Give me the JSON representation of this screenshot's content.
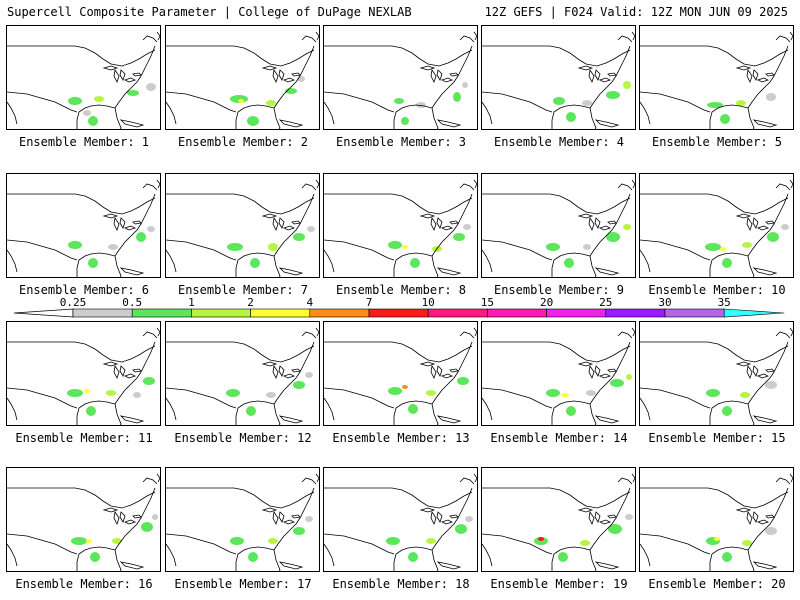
{
  "header": {
    "left": "Supercell Composite Parameter | College of DuPage NEXLAB",
    "right": "12Z GEFS | F024 Valid: 12Z MON JUN 09 2025"
  },
  "member_prefix": "Ensemble Member: ",
  "members": [
    {
      "n": "1",
      "blobs": [
        [
          74,
          100,
          14,
          8,
          "#5ce65c"
        ],
        [
          98,
          98,
          10,
          6,
          "#b7f542"
        ],
        [
          86,
          112,
          8,
          6,
          "#cccccc"
        ],
        [
          92,
          120,
          10,
          10,
          "#5ce65c"
        ],
        [
          132,
          92,
          12,
          6,
          "#5ce65c"
        ],
        [
          150,
          86,
          10,
          8,
          "#cccccc"
        ]
      ]
    },
    {
      "n": "2",
      "blobs": [
        [
          238,
          98,
          18,
          8,
          "#5ce65c"
        ],
        [
          240,
          100,
          6,
          4,
          "#ffff33"
        ],
        [
          252,
          120,
          12,
          10,
          "#5ce65c"
        ],
        [
          270,
          102,
          10,
          6,
          "#b7f542"
        ],
        [
          290,
          90,
          12,
          6,
          "#5ce65c"
        ],
        [
          300,
          78,
          8,
          6,
          "#cccccc"
        ]
      ]
    },
    {
      "n": "3",
      "blobs": [
        [
          398,
          100,
          10,
          6,
          "#5ce65c"
        ],
        [
          404,
          120,
          8,
          8,
          "#5ce65c"
        ],
        [
          420,
          104,
          10,
          6,
          "#cccccc"
        ],
        [
          456,
          96,
          8,
          10,
          "#5ce65c"
        ],
        [
          464,
          84,
          6,
          6,
          "#cccccc"
        ]
      ]
    },
    {
      "n": "4",
      "blobs": [
        [
          558,
          100,
          12,
          8,
          "#5ce65c"
        ],
        [
          570,
          116,
          10,
          10,
          "#5ce65c"
        ],
        [
          586,
          102,
          10,
          6,
          "#cccccc"
        ],
        [
          612,
          94,
          14,
          8,
          "#5ce65c"
        ],
        [
          626,
          84,
          8,
          8,
          "#b7f542"
        ]
      ]
    },
    {
      "n": "5",
      "blobs": [
        [
          714,
          104,
          16,
          6,
          "#5ce65c"
        ],
        [
          724,
          118,
          10,
          10,
          "#5ce65c"
        ],
        [
          740,
          102,
          10,
          6,
          "#b7f542"
        ],
        [
          770,
          96,
          10,
          8,
          "#cccccc"
        ]
      ]
    },
    {
      "n": "6",
      "blobs": [
        [
          74,
          244,
          14,
          8,
          "#5ce65c"
        ],
        [
          92,
          262,
          10,
          10,
          "#5ce65c"
        ],
        [
          112,
          246,
          10,
          6,
          "#cccccc"
        ],
        [
          140,
          236,
          10,
          10,
          "#5ce65c"
        ],
        [
          150,
          228,
          8,
          6,
          "#cccccc"
        ]
      ]
    },
    {
      "n": "7",
      "blobs": [
        [
          234,
          246,
          16,
          8,
          "#5ce65c"
        ],
        [
          254,
          262,
          10,
          10,
          "#5ce65c"
        ],
        [
          272,
          246,
          10,
          8,
          "#b7f542"
        ],
        [
          298,
          236,
          12,
          8,
          "#5ce65c"
        ],
        [
          310,
          228,
          8,
          6,
          "#cccccc"
        ]
      ]
    },
    {
      "n": "8",
      "blobs": [
        [
          394,
          244,
          14,
          8,
          "#5ce65c"
        ],
        [
          404,
          246,
          6,
          4,
          "#ffff33"
        ],
        [
          414,
          262,
          10,
          10,
          "#5ce65c"
        ],
        [
          436,
          248,
          10,
          6,
          "#b7f542"
        ],
        [
          458,
          236,
          12,
          8,
          "#5ce65c"
        ],
        [
          466,
          226,
          8,
          6,
          "#cccccc"
        ]
      ]
    },
    {
      "n": "9",
      "blobs": [
        [
          552,
          246,
          14,
          8,
          "#5ce65c"
        ],
        [
          568,
          262,
          10,
          10,
          "#5ce65c"
        ],
        [
          586,
          246,
          8,
          6,
          "#cccccc"
        ],
        [
          612,
          236,
          14,
          10,
          "#5ce65c"
        ],
        [
          626,
          226,
          8,
          6,
          "#b7f542"
        ]
      ]
    },
    {
      "n": "10",
      "blobs": [
        [
          712,
          246,
          16,
          8,
          "#5ce65c"
        ],
        [
          722,
          248,
          6,
          4,
          "#ffff33"
        ],
        [
          726,
          262,
          10,
          10,
          "#5ce65c"
        ],
        [
          746,
          244,
          10,
          6,
          "#b7f542"
        ],
        [
          772,
          236,
          12,
          10,
          "#5ce65c"
        ],
        [
          784,
          226,
          8,
          6,
          "#cccccc"
        ]
      ]
    },
    {
      "n": "11",
      "blobs": [
        [
          74,
          392,
          16,
          8,
          "#5ce65c"
        ],
        [
          86,
          390,
          6,
          4,
          "#ffff33"
        ],
        [
          90,
          410,
          10,
          10,
          "#5ce65c"
        ],
        [
          110,
          392,
          10,
          6,
          "#b7f542"
        ],
        [
          148,
          380,
          12,
          8,
          "#5ce65c"
        ],
        [
          136,
          394,
          8,
          6,
          "#cccccc"
        ]
      ]
    },
    {
      "n": "12",
      "blobs": [
        [
          232,
          392,
          14,
          8,
          "#5ce65c"
        ],
        [
          250,
          410,
          10,
          10,
          "#5ce65c"
        ],
        [
          270,
          394,
          10,
          6,
          "#cccccc"
        ],
        [
          298,
          384,
          12,
          8,
          "#5ce65c"
        ],
        [
          308,
          374,
          8,
          6,
          "#cccccc"
        ]
      ]
    },
    {
      "n": "13",
      "blobs": [
        [
          394,
          390,
          14,
          8,
          "#5ce65c"
        ],
        [
          404,
          386,
          6,
          4,
          "#ff8c1a"
        ],
        [
          412,
          408,
          10,
          10,
          "#5ce65c"
        ],
        [
          430,
          392,
          10,
          6,
          "#b7f542"
        ],
        [
          462,
          380,
          12,
          8,
          "#5ce65c"
        ]
      ]
    },
    {
      "n": "14",
      "blobs": [
        [
          552,
          392,
          14,
          8,
          "#5ce65c"
        ],
        [
          564,
          394,
          8,
          4,
          "#ffff33"
        ],
        [
          570,
          410,
          10,
          10,
          "#5ce65c"
        ],
        [
          590,
          392,
          10,
          6,
          "#cccccc"
        ],
        [
          616,
          382,
          14,
          8,
          "#5ce65c"
        ],
        [
          628,
          376,
          6,
          6,
          "#b7f542"
        ]
      ]
    },
    {
      "n": "15",
      "blobs": [
        [
          712,
          392,
          14,
          8,
          "#5ce65c"
        ],
        [
          726,
          410,
          10,
          10,
          "#5ce65c"
        ],
        [
          744,
          394,
          10,
          6,
          "#b7f542"
        ],
        [
          770,
          384,
          12,
          8,
          "#cccccc"
        ]
      ]
    },
    {
      "n": "16",
      "blobs": [
        [
          78,
          540,
          16,
          8,
          "#5ce65c"
        ],
        [
          88,
          540,
          6,
          4,
          "#ffff33"
        ],
        [
          94,
          556,
          10,
          10,
          "#5ce65c"
        ],
        [
          116,
          540,
          10,
          6,
          "#b7f542"
        ],
        [
          146,
          526,
          12,
          10,
          "#5ce65c"
        ],
        [
          154,
          516,
          6,
          6,
          "#cccccc"
        ]
      ]
    },
    {
      "n": "17",
      "blobs": [
        [
          236,
          540,
          14,
          8,
          "#5ce65c"
        ],
        [
          252,
          556,
          10,
          10,
          "#5ce65c"
        ],
        [
          272,
          540,
          10,
          6,
          "#b7f542"
        ],
        [
          298,
          530,
          12,
          8,
          "#5ce65c"
        ],
        [
          308,
          518,
          8,
          6,
          "#cccccc"
        ]
      ]
    },
    {
      "n": "18",
      "blobs": [
        [
          392,
          540,
          14,
          8,
          "#5ce65c"
        ],
        [
          412,
          556,
          10,
          10,
          "#5ce65c"
        ],
        [
          430,
          540,
          10,
          6,
          "#b7f542"
        ],
        [
          460,
          528,
          12,
          10,
          "#5ce65c"
        ],
        [
          468,
          518,
          8,
          6,
          "#cccccc"
        ]
      ]
    },
    {
      "n": "19",
      "blobs": [
        [
          540,
          540,
          14,
          8,
          "#5ce65c"
        ],
        [
          540,
          538,
          6,
          4,
          "#ff1a1a"
        ],
        [
          562,
          556,
          10,
          10,
          "#5ce65c"
        ],
        [
          584,
          542,
          10,
          6,
          "#b7f542"
        ],
        [
          614,
          528,
          14,
          10,
          "#5ce65c"
        ],
        [
          628,
          516,
          8,
          6,
          "#cccccc"
        ]
      ]
    },
    {
      "n": "20",
      "blobs": [
        [
          712,
          540,
          14,
          8,
          "#5ce65c"
        ],
        [
          716,
          538,
          6,
          4,
          "#ffff33"
        ],
        [
          726,
          556,
          10,
          10,
          "#5ce65c"
        ],
        [
          746,
          542,
          10,
          6,
          "#b7f542"
        ],
        [
          770,
          530,
          12,
          8,
          "#cccccc"
        ]
      ]
    }
  ],
  "colorbar": {
    "labels": [
      "0.25",
      "0.5",
      "1",
      "2",
      "4",
      "7",
      "10",
      "15",
      "20",
      "25",
      "30",
      "35"
    ],
    "colors": [
      "#cccccc",
      "#5ce65c",
      "#b7f542",
      "#ffff33",
      "#ff8c1a",
      "#ff1a1a",
      "#ff1a80",
      "#ff1ab2",
      "#ee22ee",
      "#9b1aff",
      "#b266e6",
      "#33ffff"
    ]
  }
}
